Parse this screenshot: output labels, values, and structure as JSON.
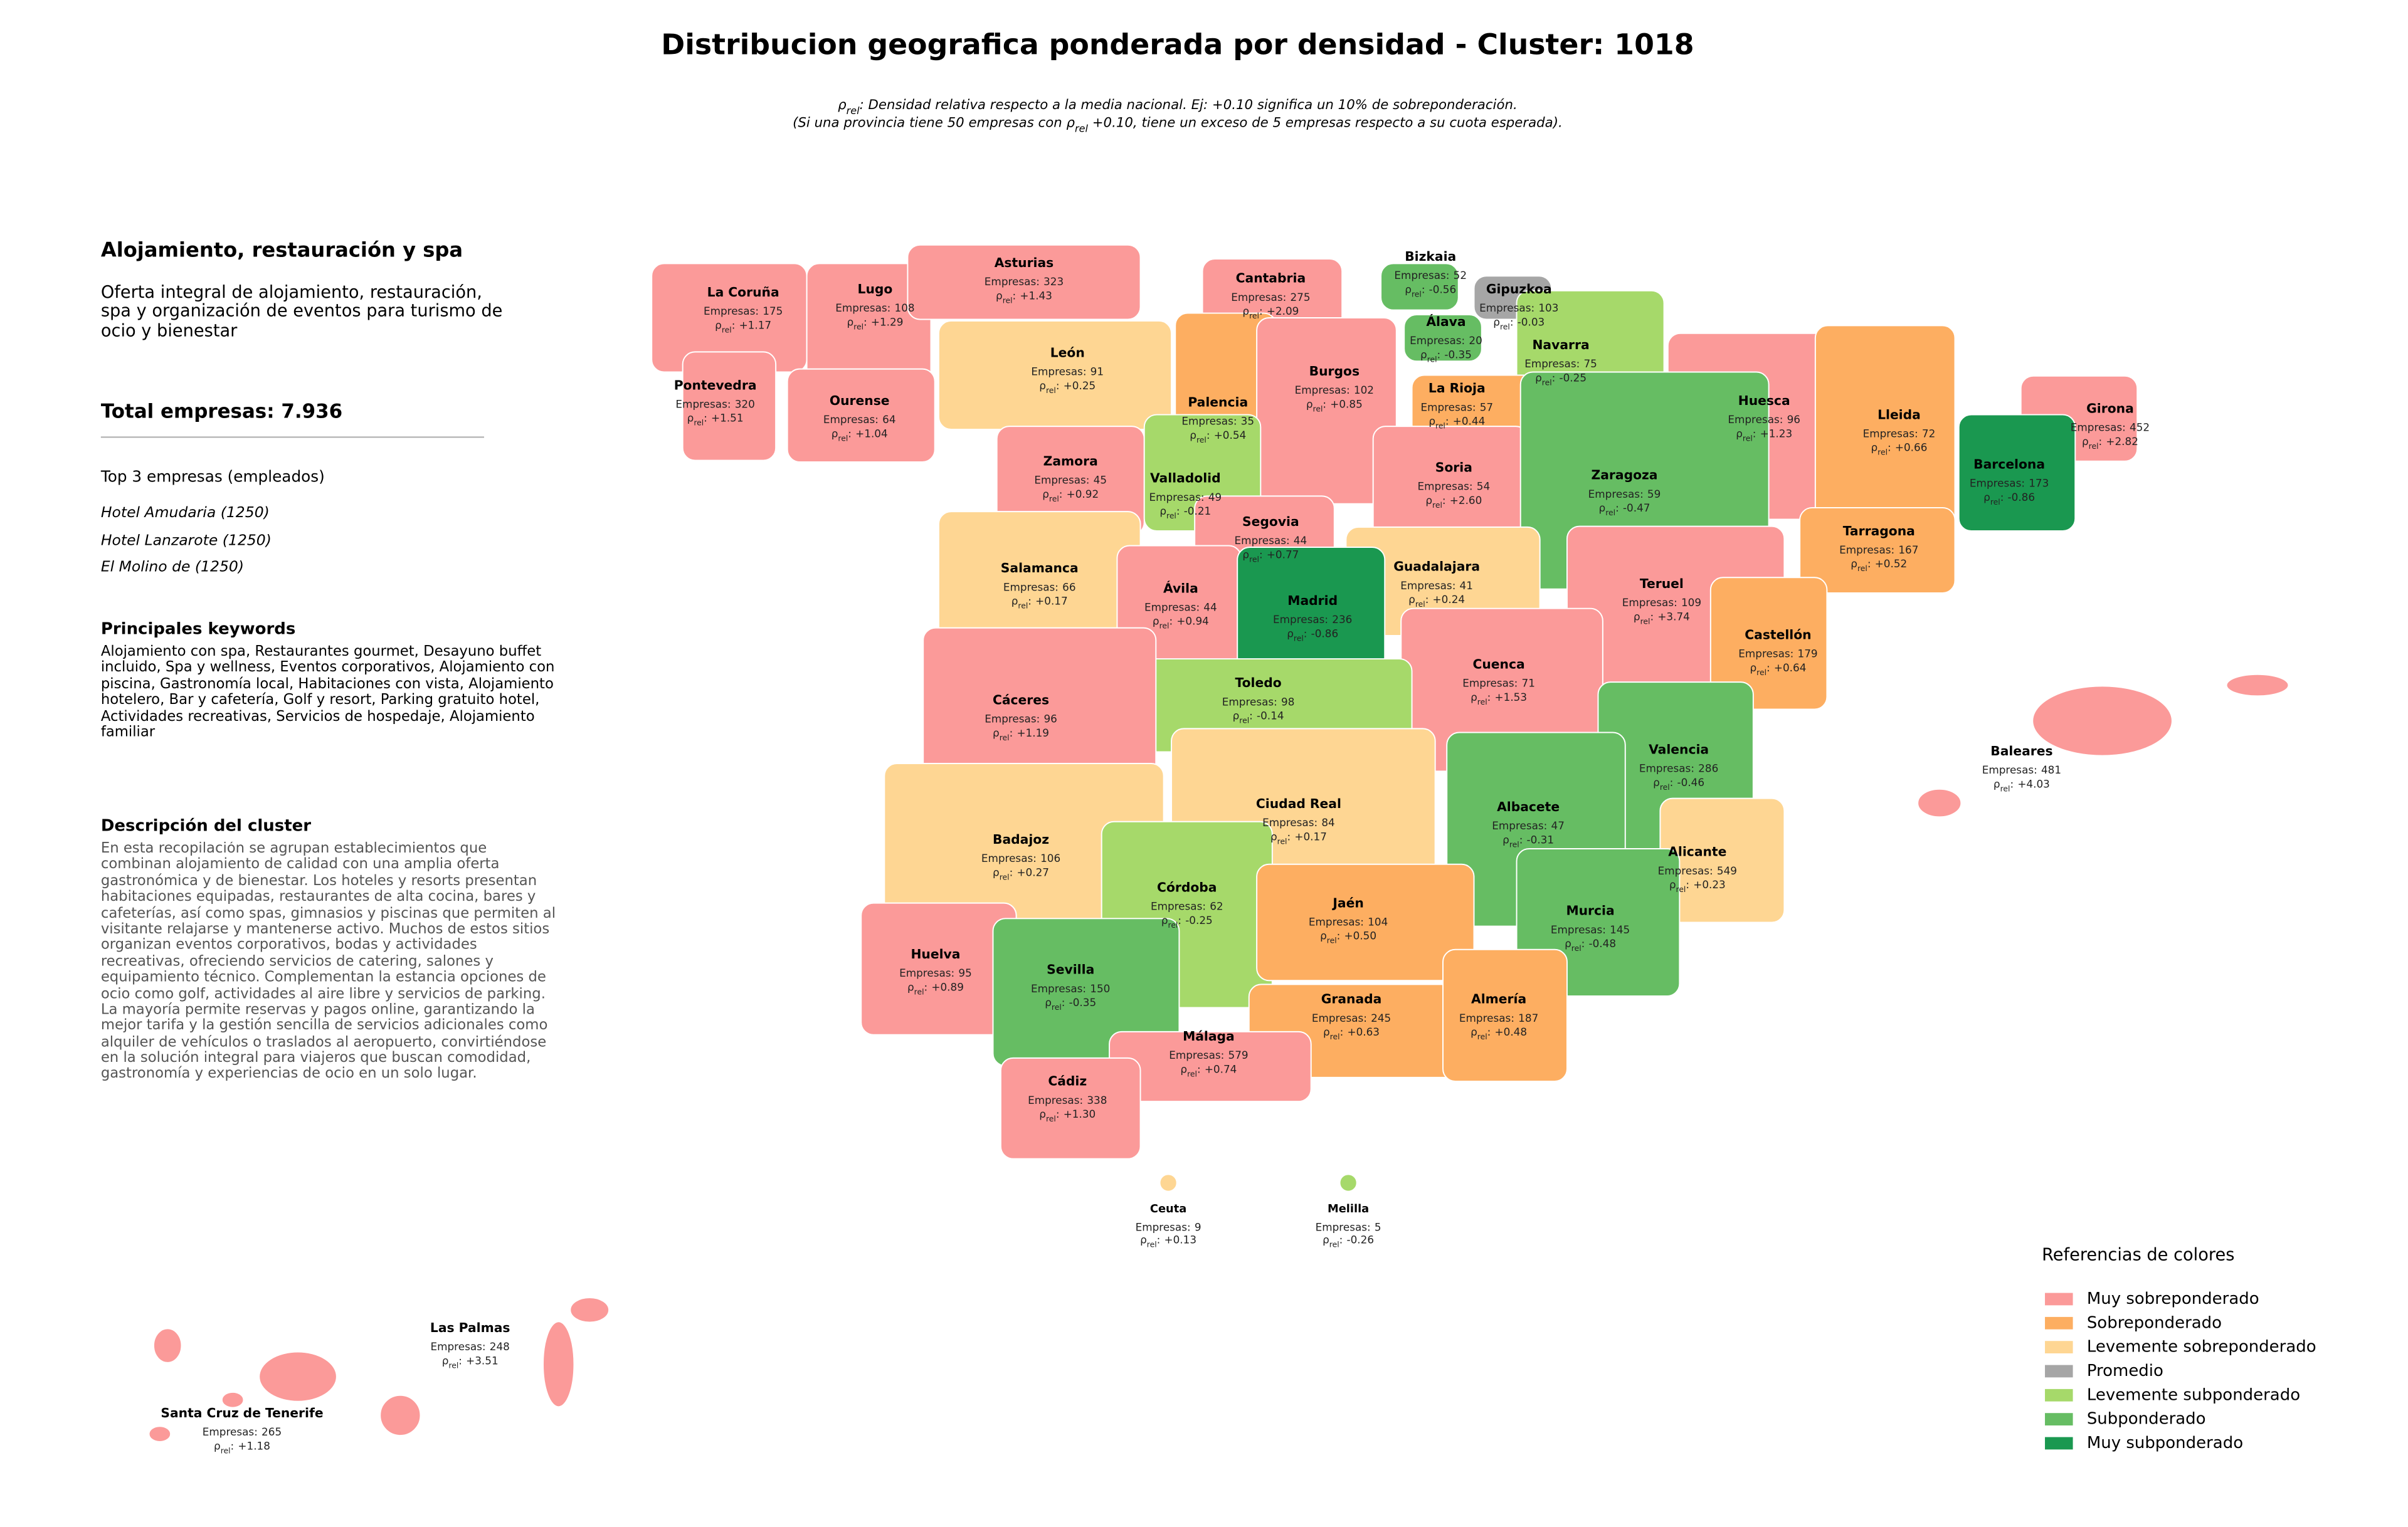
{
  "title": "Distribucion geografica ponderada por densidad - Cluster: 1018",
  "subtitle": [
    [
      {
        "text": "ρ"
      },
      {
        "text": "rel",
        "sub": true
      },
      {
        "text": ": Densidad relativa respecto a la media nacional. Ej: +0.10 significa un 10% de sobreponderación."
      }
    ],
    [
      {
        "text": "(Si una provincia tiene 50 empresas con ρ"
      },
      {
        "text": "rel",
        "sub": true
      },
      {
        "text": " +0.10, tiene un exceso de 5 empresas respecto a su cuota esperada)."
      }
    ]
  ],
  "sidebar": {
    "heading": "Alojamiento, restauración y spa",
    "description": "Oferta integral de alojamiento, restauración, spa y organización de eventos para turismo de ocio y bienestar",
    "total": "Total empresas: 7.936",
    "top_title": "Top 3 empresas (empleados)",
    "top": [
      "Hotel Amudaria (1250)",
      "Hotel Lanzarote (1250)",
      "El Molino de (1250)"
    ],
    "keywords_title": "Principales keywords",
    "keywords": "Alojamiento con spa, Restaurantes gourmet, Desayuno buffet incluido, Spa y wellness, Eventos corporativos, Alojamiento con piscina, Gastronomía local, Habitaciones con vista, Alojamiento hotelero, Bar y cafetería, Golf y resort, Parking gratuito hotel, Actividades recreativas, Servicios de hospedaje, Alojamiento familiar",
    "cluster_title": "Descripción del cluster",
    "cluster_text": "En esta recopilación se agrupan establecimientos que combinan alojamiento de calidad con una amplia oferta gastronómica y de bienestar. Los hoteles y resorts presentan habitaciones equipadas, restaurantes de alta cocina, bares y cafeterías, así como spas, gimnasios y piscinas que permiten al visitante relajarse y mantenerse activo. Muchos de estos sitios organizan eventos corporativos, bodas y actividades recreativas, ofreciendo servicios de catering, salones y equipamiento técnico. Complementan la estancia opciones de ocio como golf, actividades al aire libre y servicios de parking. La mayoría permite reservas y pagos online, garantizando la mejor tarifa y la gestión sencilla de servicios adicionales como alquiler de vehículos o traslados al aeropuerto, convirtiéndose en la solución integral para viajeros que buscan comodidad, gastronomía y experiencias de ocio en un solo lugar."
  },
  "map": {
    "empresas_prefix": "Empresas:",
    "rho_symbol": "ρ",
    "rho_subscript": "rel",
    "rho_colon": ":",
    "provinces": [
      {
        "name": "La Coruña",
        "empresas": 175,
        "rho": 1.17,
        "rho_label": "+1.17",
        "category": "Muy sobreponderado"
      },
      {
        "name": "Lugo",
        "empresas": 108,
        "rho": 1.29,
        "rho_label": "+1.29",
        "category": "Muy sobreponderado"
      },
      {
        "name": "Asturias",
        "empresas": 323,
        "rho": 1.43,
        "rho_label": "+1.43",
        "category": "Muy sobreponderado"
      },
      {
        "name": "Cantabria",
        "empresas": 275,
        "rho": 2.09,
        "rho_label": "+2.09",
        "category": "Muy sobreponderado"
      },
      {
        "name": "Bizkaia",
        "empresas": 52,
        "rho": -0.56,
        "category": "Subponderado"
      },
      {
        "name": "Gipuzkoa",
        "empresas": 103,
        "rho": -0.03,
        "category": "Promedio"
      },
      {
        "name": "Pontevedra",
        "empresas": 320,
        "rho": 1.51,
        "rho_label": "+1.51",
        "category": "Muy sobreponderado"
      },
      {
        "name": "Ourense",
        "empresas": 64,
        "rho": 1.04,
        "rho_label": "+1.04",
        "category": "Muy sobreponderado"
      },
      {
        "name": "León",
        "empresas": 91,
        "rho": 0.25,
        "rho_label": "+0.25",
        "category": "Levemente sobreponderado"
      },
      {
        "name": "Palencia",
        "empresas": 35,
        "rho": 0.54,
        "rho_label": "+0.54",
        "category": "Sobreponderado"
      },
      {
        "name": "Burgos",
        "empresas": 102,
        "rho": 0.85,
        "rho_label": "+0.85",
        "category": "Muy sobreponderado"
      },
      {
        "name": "Álava",
        "empresas": 20,
        "rho": -0.35,
        "category": "Subponderado"
      },
      {
        "name": "Navarra",
        "empresas": 75,
        "rho": -0.25,
        "category": "Levemente subponderado"
      },
      {
        "name": "La Rioja",
        "empresas": 57,
        "rho": 0.44,
        "rho_label": "+0.44",
        "category": "Sobreponderado"
      },
      {
        "name": "Huesca",
        "empresas": 96,
        "rho": 1.23,
        "rho_label": "+1.23",
        "category": "Muy sobreponderado"
      },
      {
        "name": "Lleida",
        "empresas": 72,
        "rho": 0.66,
        "rho_label": "+0.66",
        "category": "Sobreponderado"
      },
      {
        "name": "Girona",
        "empresas": 452,
        "rho": 2.82,
        "rho_label": "+2.82",
        "category": "Muy sobreponderado"
      },
      {
        "name": "Barcelona",
        "empresas": 173,
        "rho": -0.86,
        "category": "Muy subponderado"
      },
      {
        "name": "Zamora",
        "empresas": 45,
        "rho": 0.92,
        "rho_label": "+0.92",
        "category": "Muy sobreponderado"
      },
      {
        "name": "Valladolid",
        "empresas": 49,
        "rho": -0.21,
        "category": "Levemente subponderado"
      },
      {
        "name": "Soria",
        "empresas": 54,
        "rho": 2.6,
        "rho_label": "+2.60",
        "category": "Muy sobreponderado"
      },
      {
        "name": "Zaragoza",
        "empresas": 59,
        "rho": -0.47,
        "category": "Subponderado"
      },
      {
        "name": "Segovia",
        "empresas": 44,
        "rho": 0.77,
        "rho_label": "+0.77",
        "category": "Muy sobreponderado"
      },
      {
        "name": "Tarragona",
        "empresas": 167,
        "rho": 0.52,
        "rho_label": "+0.52",
        "category": "Sobreponderado"
      },
      {
        "name": "Salamanca",
        "empresas": 66,
        "rho": 0.17,
        "rho_label": "+0.17",
        "category": "Levemente sobreponderado"
      },
      {
        "name": "Guadalajara",
        "empresas": 41,
        "rho": 0.24,
        "rho_label": "+0.24",
        "category": "Levemente sobreponderado"
      },
      {
        "name": "Ávila",
        "empresas": 44,
        "rho": 0.94,
        "rho_label": "+0.94",
        "category": "Muy sobreponderado"
      },
      {
        "name": "Madrid",
        "empresas": 236,
        "rho": -0.86,
        "category": "Muy subponderado"
      },
      {
        "name": "Teruel",
        "empresas": 109,
        "rho": 3.74,
        "rho_label": "+3.74",
        "category": "Muy sobreponderado"
      },
      {
        "name": "Castellón",
        "empresas": 179,
        "rho": 0.64,
        "rho_label": "+0.64",
        "category": "Sobreponderado"
      },
      {
        "name": "Cuenca",
        "empresas": 71,
        "rho": 1.53,
        "rho_label": "+1.53",
        "category": "Muy sobreponderado"
      },
      {
        "name": "Toledo",
        "empresas": 98,
        "rho": -0.14,
        "category": "Levemente subponderado"
      },
      {
        "name": "Cáceres",
        "empresas": 96,
        "rho": 1.19,
        "rho_label": "+1.19",
        "category": "Muy sobreponderado"
      },
      {
        "name": "Valencia",
        "empresas": 286,
        "rho": -0.46,
        "category": "Subponderado"
      },
      {
        "name": "Baleares",
        "empresas": 481,
        "rho": 4.03,
        "rho_label": "+4.03",
        "category": "Muy sobreponderado"
      },
      {
        "name": "Ciudad Real",
        "empresas": 84,
        "rho": 0.17,
        "rho_label": "+0.17",
        "category": "Levemente sobreponderado"
      },
      {
        "name": "Albacete",
        "empresas": 47,
        "rho": -0.31,
        "category": "Subponderado"
      },
      {
        "name": "Badajoz",
        "empresas": 106,
        "rho": 0.27,
        "rho_label": "+0.27",
        "category": "Levemente sobreponderado"
      },
      {
        "name": "Alicante",
        "empresas": 549,
        "rho": 0.23,
        "rho_label": "+0.23",
        "category": "Levemente sobreponderado"
      },
      {
        "name": "Córdoba",
        "empresas": 62,
        "rho": -0.25,
        "category": "Levemente subponderado"
      },
      {
        "name": "Jaén",
        "empresas": 104,
        "rho": 0.5,
        "rho_label": "+0.50",
        "category": "Sobreponderado"
      },
      {
        "name": "Murcia",
        "empresas": 145,
        "rho": -0.48,
        "category": "Subponderado"
      },
      {
        "name": "Huelva",
        "empresas": 95,
        "rho": 0.89,
        "rho_label": "+0.89",
        "category": "Muy sobreponderado"
      },
      {
        "name": "Sevilla",
        "empresas": 150,
        "rho": -0.35,
        "category": "Subponderado"
      },
      {
        "name": "Granada",
        "empresas": 245,
        "rho": 0.63,
        "rho_label": "+0.63",
        "category": "Sobreponderado"
      },
      {
        "name": "Almería",
        "empresas": 187,
        "rho": 0.48,
        "rho_label": "+0.48",
        "category": "Sobreponderado"
      },
      {
        "name": "Málaga",
        "empresas": 579,
        "rho": 0.74,
        "rho_label": "+0.74",
        "category": "Muy sobreponderado"
      },
      {
        "name": "Cádiz",
        "empresas": 338,
        "rho": 1.3,
        "rho_label": "+1.30",
        "category": "Muy sobreponderado"
      },
      {
        "name": "Ceuta",
        "empresas": 9,
        "rho": 0.13,
        "rho_label": "+0.13",
        "category": "Levemente sobreponderado"
      },
      {
        "name": "Melilla",
        "empresas": 5,
        "rho": -0.26,
        "category": "Levemente subponderado"
      },
      {
        "name": "Las Palmas",
        "empresas": 248,
        "rho": 3.51,
        "rho_label": "+3.51",
        "category": "Muy sobreponderado"
      },
      {
        "name": "Santa Cruz de Tenerife",
        "empresas": 265,
        "rho": 1.18,
        "rho_label": "+1.18",
        "category": "Muy sobreponderado"
      }
    ]
  },
  "legend": {
    "title": "Referencias de colores",
    "items": [
      {
        "label": "Muy sobreponderado",
        "color": "#fb9a99"
      },
      {
        "label": "Sobreponderado",
        "color": "#fdae61"
      },
      {
        "label": "Levemente sobreponderado",
        "color": "#fed693"
      },
      {
        "label": "Promedio",
        "color": "#a6a6a6"
      },
      {
        "label": "Levemente subponderado",
        "color": "#a6d96a"
      },
      {
        "label": "Subponderado",
        "color": "#66bd63"
      },
      {
        "label": "Muy subponderado",
        "color": "#1a9850"
      }
    ]
  }
}
